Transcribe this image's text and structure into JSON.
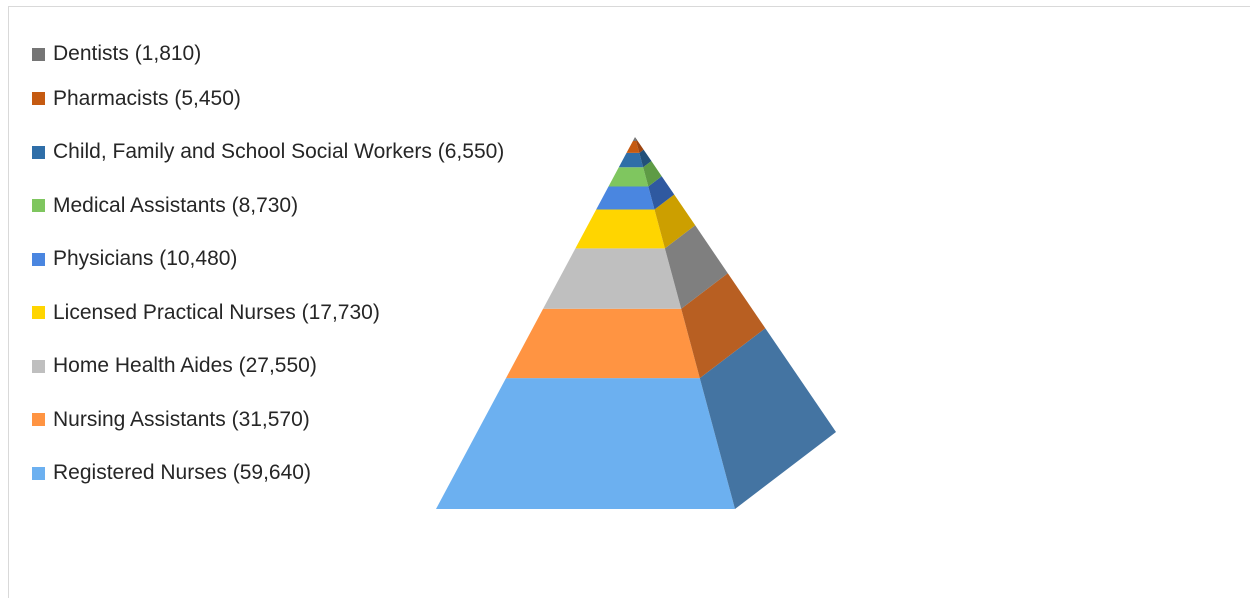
{
  "chart_data": {
    "type": "pyramid",
    "title": "",
    "legend_position": "left",
    "series": [
      {
        "label": "Dentists (1,810)",
        "value": 1810,
        "color": "#757575",
        "side_color": "#555555"
      },
      {
        "label": "Pharmacists (5,450)",
        "value": 5450,
        "color": "#c55a11",
        "side_color": "#9c4510"
      },
      {
        "label": "Child, Family and School Social Workers (6,550)",
        "value": 6550,
        "color": "#2f6ea8",
        "side_color": "#22507a"
      },
      {
        "label": "Medical Assistants (8,730)",
        "value": 8730,
        "color": "#7fc65f",
        "side_color": "#5e9b45"
      },
      {
        "label": "Physicians (10,480)",
        "value": 10480,
        "color": "#4a86e0",
        "side_color": "#2f59a0"
      },
      {
        "label": "Licensed Practical Nurses (17,730)",
        "value": 17730,
        "color": "#ffd500",
        "side_color": "#cc9f00"
      },
      {
        "label": "Home Health Aides (27,550)",
        "value": 27550,
        "color": "#bfbfbf",
        "side_color": "#7f7f7f"
      },
      {
        "label": "Nursing Assistants (31,570)",
        "value": 31570,
        "color": "#ff9442",
        "side_color": "#b85f22"
      },
      {
        "label": "Registered Nurses (59,640)",
        "value": 59640,
        "color": "#6cb0f0",
        "side_color": "#4474a2"
      }
    ]
  }
}
